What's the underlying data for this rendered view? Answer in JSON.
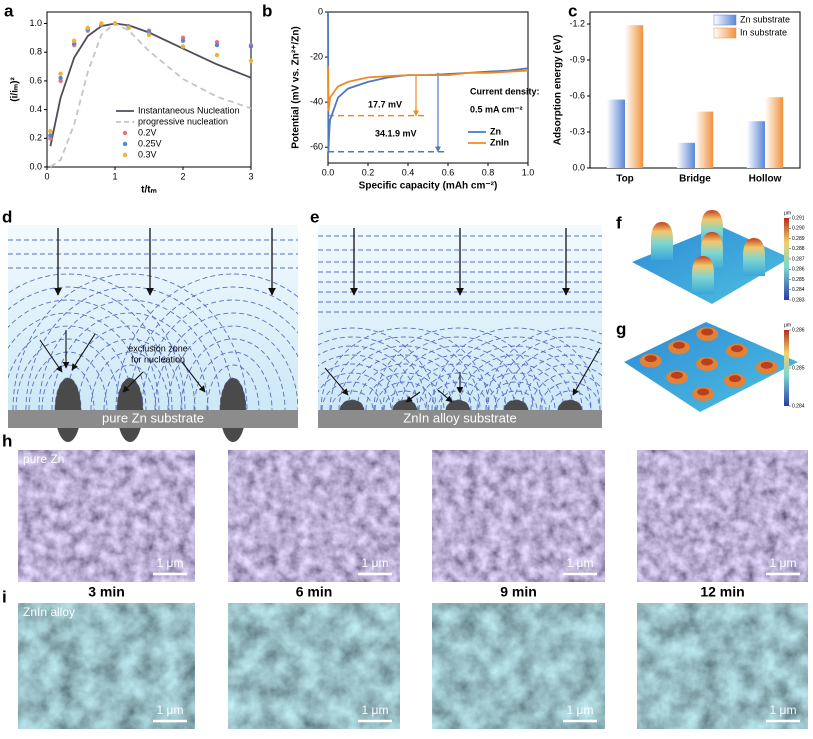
{
  "chart_data": [
    {
      "type": "line",
      "panel": "a",
      "x_label": "t/tₘ",
      "y_label": "(i/iₘ)²",
      "x": [
        0.05,
        0.2,
        0.4,
        0.6,
        0.8,
        1.0,
        1.2,
        1.5,
        2.0,
        2.5,
        3.0
      ],
      "xlim": [
        0,
        3
      ],
      "xticks": [
        0,
        1,
        2,
        3
      ],
      "ylim": [
        0,
        1.08
      ],
      "yticks": [
        {
          "value": 0,
          "label": "0.0"
        },
        {
          "value": 0.2,
          "label": "0.2"
        },
        {
          "value": 0.4,
          "label": "0.4"
        },
        {
          "value": 0.6,
          "label": "0.6"
        },
        {
          "value": 0.8,
          "label": "0.8"
        },
        {
          "value": 1,
          "label": "1.0"
        }
      ],
      "legend": "lower right",
      "series": [
        {
          "name": "Instantaneous Nucleation",
          "color": "#4d4d5c",
          "style": "line",
          "values": [
            0.145,
            0.483,
            0.762,
            0.913,
            0.982,
            1.0,
            0.987,
            0.937,
            0.825,
            0.715,
            0.622
          ]
        },
        {
          "name": "progressive nucleation",
          "color": "#c4c4cc",
          "style": "dashed",
          "values": [
            0.001,
            0.049,
            0.298,
            0.661,
            0.922,
            1.0,
            0.952,
            0.808,
            0.613,
            0.49,
            0.408
          ]
        },
        {
          "name": "0.2V",
          "color": "#e8737a",
          "style": "markers",
          "values": [
            0.2,
            0.6,
            0.85,
            0.95,
            0.99,
            1.0,
            0.98,
            0.95,
            0.9,
            0.87,
            0.85
          ]
        },
        {
          "name": "0.25V",
          "color": "#5b86d6",
          "style": "markers",
          "values": [
            0.22,
            0.62,
            0.86,
            0.96,
            0.99,
            1.0,
            0.98,
            0.94,
            0.88,
            0.85,
            0.84
          ]
        },
        {
          "name": "0.3V",
          "color": "#f2b233",
          "style": "markers",
          "values": [
            0.25,
            0.65,
            0.88,
            0.97,
            1.0,
            1.0,
            0.97,
            0.92,
            0.84,
            0.78,
            0.74
          ]
        }
      ]
    },
    {
      "type": "line",
      "panel": "b",
      "x_label": "Specific capacity (mAh cm⁻²)",
      "y_label": "Potential (mV vs. Zn²⁺/Zn)",
      "x": [
        0,
        0.002,
        0.005,
        0.01,
        0.05,
        0.1,
        0.2,
        0.3,
        0.4,
        0.5,
        0.6,
        0.7,
        0.8,
        0.9,
        1.0
      ],
      "xlim": [
        0,
        1.0
      ],
      "xticks": [
        {
          "value": 0,
          "label": "0.0"
        },
        0.2,
        0.4,
        0.6,
        0.8,
        {
          "value": 1,
          "label": "1.0"
        }
      ],
      "ylim": [
        -67,
        0
      ],
      "yticks": [
        0,
        -20,
        -40,
        -60
      ],
      "legend": "lower right",
      "series": [
        {
          "name": "Zn",
          "color": "#4a78c2",
          "style": "line",
          "values": [
            0,
            -62,
            -55,
            -48,
            -38,
            -34,
            -31,
            -29,
            -28,
            -28,
            -27.5,
            -27,
            -26.5,
            -26,
            -25
          ]
        },
        {
          "name": "ZnIn",
          "color": "#f08a24",
          "style": "line",
          "values": [
            -24,
            -44,
            -42,
            -38,
            -33,
            -31,
            -29,
            -28.5,
            -28,
            -28,
            -28,
            -27,
            -27,
            -26.5,
            -26
          ]
        }
      ],
      "guides": [
        {
          "color": "#f08a24",
          "x": 0.44,
          "y": -46,
          "y_end": -28
        },
        {
          "color": "#4a78c2",
          "x": 0.55,
          "y": -62,
          "y_end": -27
        }
      ],
      "annotations": [
        {
          "text": "17.7 mV",
          "color": "#f08a24"
        },
        {
          "text": "34.1.9 mV",
          "color": "#4a78c2"
        },
        {
          "text": "Current density:",
          "color": "#000000"
        },
        {
          "text": "0.5 mA cm⁻²",
          "color": "#000000"
        }
      ]
    },
    {
      "type": "bar",
      "panel": "c",
      "y_label": "Adsorption energy (eV)",
      "categories": [
        "Top",
        "Bridge",
        "Hollow"
      ],
      "ylim": [
        0,
        -1.3
      ],
      "yticks": [
        {
          "value": 0,
          "label": "0.0"
        },
        {
          "value": -0.3,
          "label": "-0.3"
        },
        {
          "value": -0.6,
          "label": "-0.6"
        },
        {
          "value": -0.9,
          "label": "-0.9"
        },
        {
          "value": -1.2,
          "label": "-1.2"
        }
      ],
      "legend": "upper right",
      "series": [
        {
          "name": "Zn substrate",
          "color": "#5b86d6",
          "values": [
            -0.57,
            -0.21,
            -0.39
          ]
        },
        {
          "name": "In substrate",
          "color": "#f0913c",
          "values": [
            -1.19,
            -0.47,
            -0.59
          ]
        }
      ]
    }
  ],
  "panels": {
    "d": {
      "label": "d",
      "note": [
        "exclusion zone",
        "for nucleation"
      ],
      "substrate": "pure Zn substrate"
    },
    "e": {
      "label": "e",
      "substrate": "ZnIn alloy substrate"
    },
    "f": {
      "label": "f",
      "unit": "μm",
      "colorbar": [
        0.291,
        {
          "value": 0.29,
          "label": "0.290"
        },
        0.289,
        0.288,
        0.287,
        0.286,
        0.285,
        0.284,
        0.283
      ]
    },
    "g": {
      "label": "g",
      "unit": "μm",
      "colorbar": [
        0.286,
        0.285,
        0.284
      ]
    },
    "h": {
      "label": "h",
      "sample": "pure Zn",
      "scale_bar": "1 μm",
      "times": [
        "3 min",
        "6 min",
        "9 min",
        "12 min"
      ]
    },
    "i": {
      "label": "i",
      "sample": "ZnIn alloy",
      "scale_bar": "1 μm"
    }
  }
}
